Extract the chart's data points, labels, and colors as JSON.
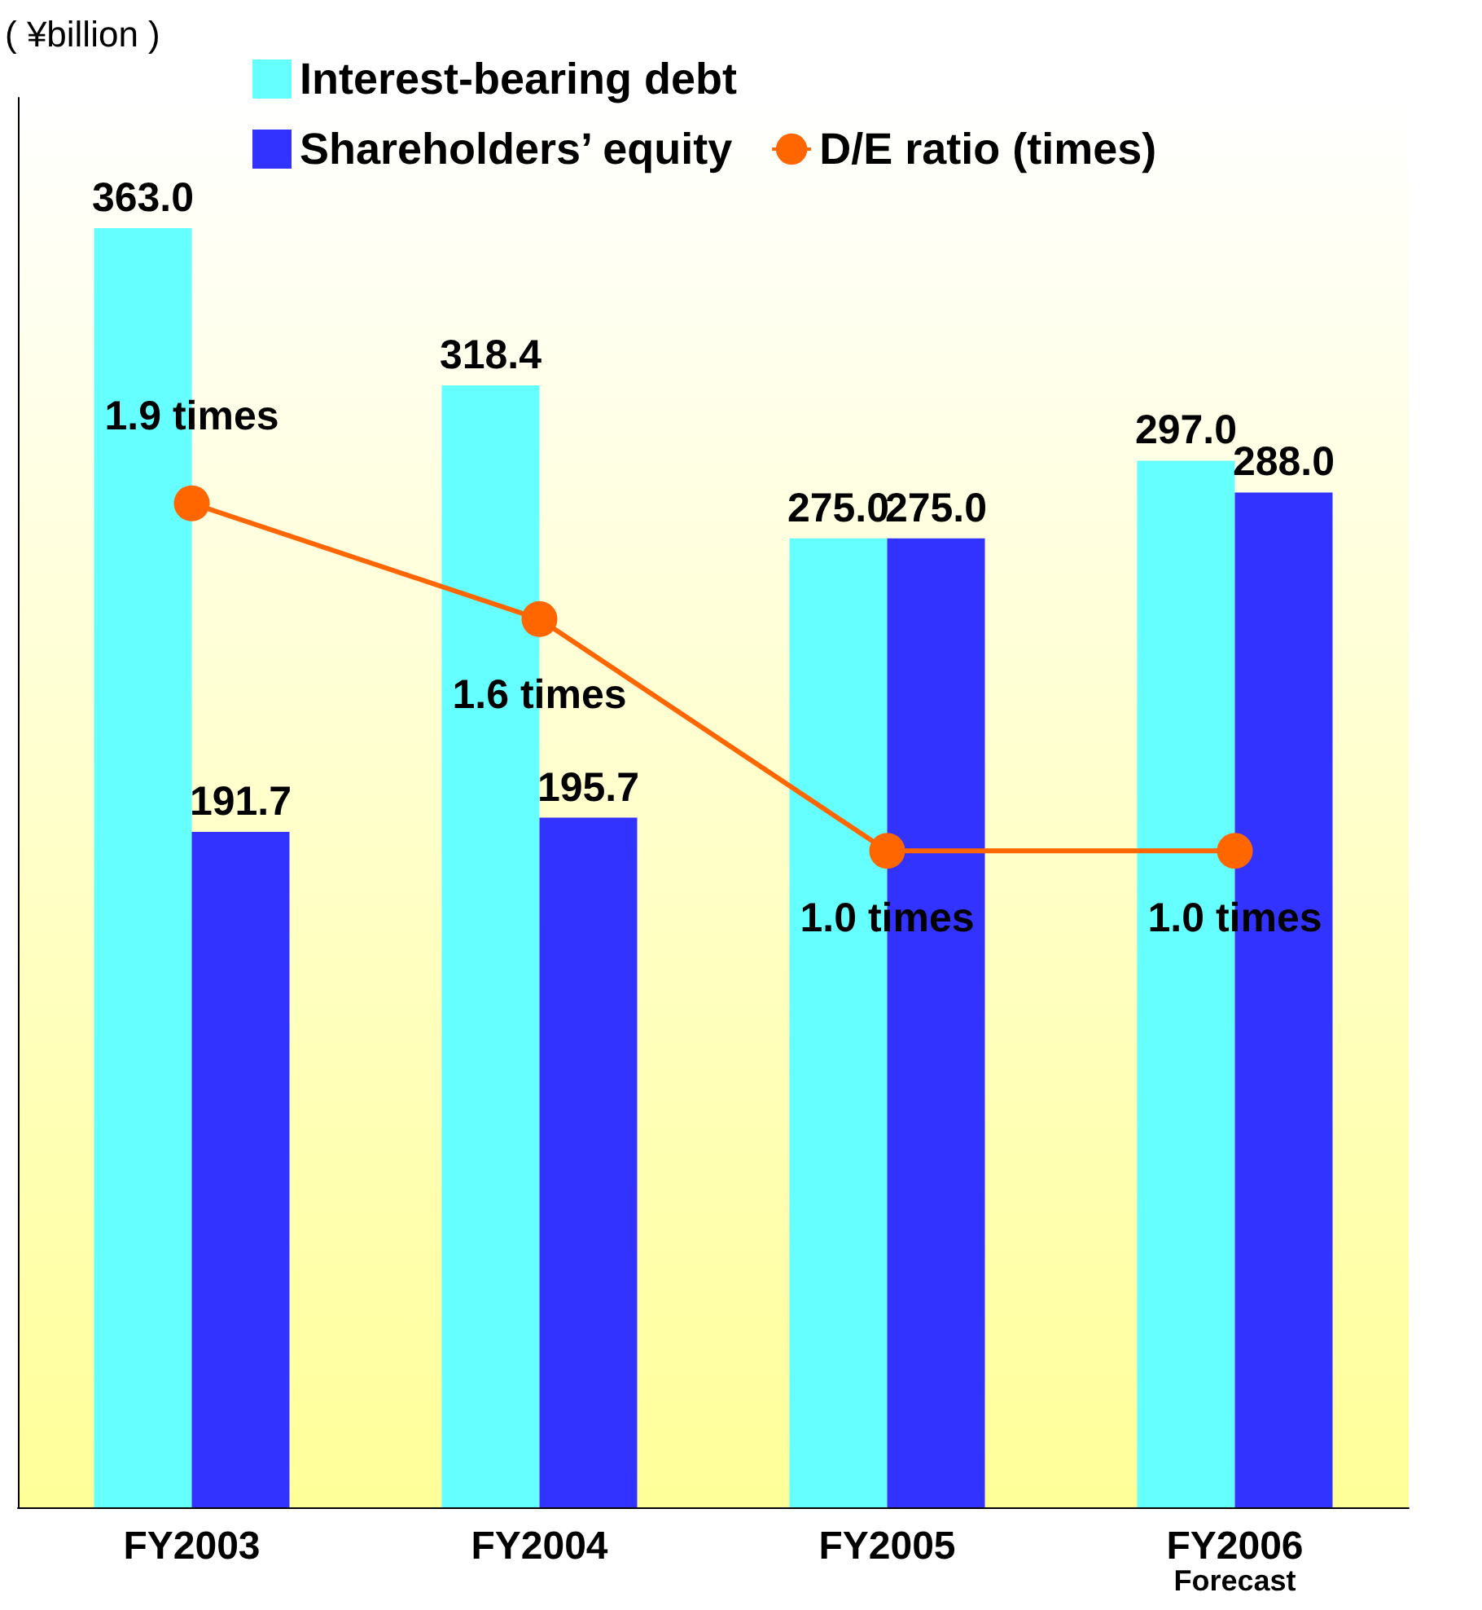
{
  "chart_data": {
    "type": "bar",
    "ylabel": "( ¥billion )",
    "categories": [
      "FY2003",
      "FY2004",
      "FY2005",
      "FY2006\nForecast"
    ],
    "series": [
      {
        "name": "Interest-bearing debt",
        "color": "#66ffff",
        "values": [
          363.0,
          318.4,
          275.0,
          297.0
        ],
        "value_labels": [
          "363.0",
          "318.4",
          "275.0",
          "297.0"
        ]
      },
      {
        "name": "Shareholders’ equity",
        "color": "#3333ff",
        "values": [
          191.7,
          195.7,
          275.0,
          288.0
        ],
        "value_labels": [
          "191.7",
          "195.7",
          "275.0",
          "288.0"
        ]
      },
      {
        "name": "D/E ratio (times)",
        "type": "line",
        "axis": "y2",
        "color": "#ff6600",
        "values": [
          1.9,
          1.6,
          1.0,
          1.0
        ],
        "value_labels": [
          "1.9 times",
          "1.6 times",
          "1.0 times",
          "1.0 times"
        ]
      }
    ],
    "ylim": [
      0,
      400
    ],
    "y2lim": [
      -0.7,
      2.95
    ],
    "tick_labels": "x",
    "grid": false,
    "legend": "top",
    "marker": "circle"
  }
}
